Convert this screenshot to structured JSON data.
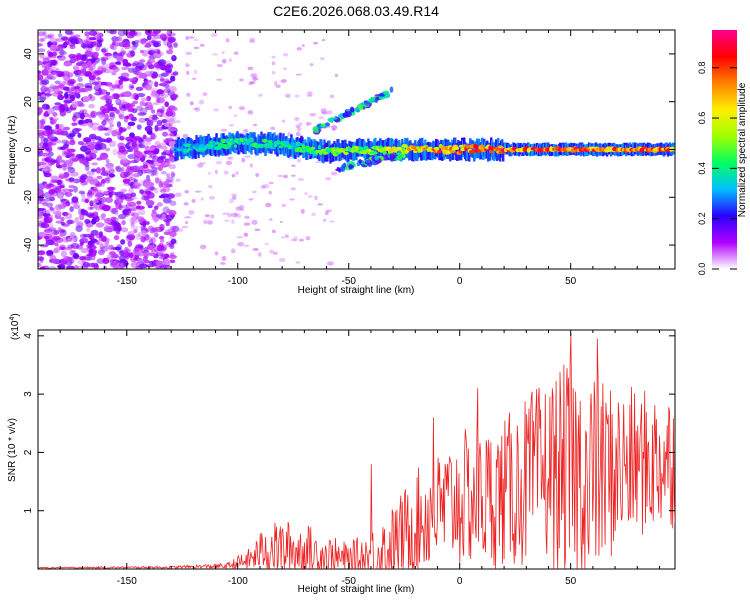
{
  "title": "C2E6.2026.068.03.49.R14",
  "chart_data": [
    {
      "type": "heatmap",
      "title": "C2E6.2026.068.03.49.R14",
      "xlabel": "Height of straight line (km)",
      "ylabel": "Frequency (Hz)",
      "xlim": [
        -190,
        97
      ],
      "ylim": [
        -50,
        50
      ],
      "xticks": [
        -150,
        -100,
        -50,
        0,
        50
      ],
      "yticks": [
        -40,
        -20,
        0,
        20,
        40
      ],
      "colorbar": {
        "label": "Normalized spectral amplitude",
        "range": [
          0,
          0.95
        ],
        "ticks": [
          "0.0",
          "0.2",
          "0.4",
          "0.6",
          "0.8"
        ],
        "colors": [
          "#ffffff",
          "#b000ff",
          "#2a00ff",
          "#00bfff",
          "#00ff60",
          "#a0ff00",
          "#ffee00",
          "#ff8000",
          "#ff0000",
          "#ff0090"
        ]
      },
      "features": [
        {
          "name": "noise-field",
          "x": [
            -190,
            -128
          ],
          "y": [
            -50,
            50
          ],
          "amplitude": 0.12
        },
        {
          "name": "main-band",
          "x": [
            -128,
            97
          ],
          "y_center": [
            0,
            3,
            2,
            -1,
            0,
            0,
            0,
            0
          ],
          "x_nodes": [
            -128,
            -100,
            -80,
            -60,
            -40,
            -20,
            20,
            97
          ],
          "amplitude": [
            0.35,
            0.45,
            0.4,
            0.5,
            0.55,
            0.7,
            0.85,
            0.8
          ]
        },
        {
          "name": "upper-branch",
          "x": [
            -65,
            -30
          ],
          "y": [
            8,
            25
          ],
          "amplitude": 0.4
        },
        {
          "name": "lower-branch",
          "x": [
            -55,
            -25
          ],
          "y": [
            -8,
            -2
          ],
          "amplitude": 0.4
        }
      ]
    },
    {
      "type": "line",
      "xlabel": "Height of straight line (km)",
      "ylabel": "SNR (10 * v/v)",
      "yscale_label": "(x10",
      "yscale_exp": "4",
      "xlim": [
        -190,
        97
      ],
      "ylim": [
        0,
        4.1
      ],
      "xticks": [
        -150,
        -100,
        -50,
        0,
        50
      ],
      "yticks": [
        1,
        2,
        3,
        4
      ],
      "color": "#ee2222",
      "envelope": {
        "x": [
          -190,
          -130,
          -105,
          -95,
          -88,
          -80,
          -70,
          -60,
          -50,
          -40,
          -30,
          -20,
          -10,
          0,
          10,
          20,
          30,
          40,
          50,
          60,
          70,
          80,
          97
        ],
        "base": [
          0.02,
          0.03,
          0.05,
          0.15,
          0.35,
          0.35,
          0.3,
          0.2,
          0.15,
          0.2,
          0.4,
          0.8,
          1.0,
          1.2,
          1.2,
          1.3,
          1.5,
          1.7,
          1.6,
          1.6,
          1.7,
          1.8,
          1.9
        ],
        "amp": [
          0.01,
          0.02,
          0.05,
          0.2,
          0.4,
          0.5,
          0.5,
          0.4,
          0.3,
          0.5,
          0.7,
          0.9,
          1.0,
          1.2,
          1.2,
          1.3,
          1.5,
          1.6,
          2.0,
          1.8,
          1.5,
          1.3,
          1.2
        ]
      },
      "peaks": [
        {
          "x": -40,
          "y": 1.8
        },
        {
          "x": -12,
          "y": 2.6
        },
        {
          "x": 8,
          "y": 3.1
        },
        {
          "x": 50,
          "y": 4.05
        },
        {
          "x": 62,
          "y": 3.95
        },
        {
          "x": 58,
          "y": 0.25
        }
      ]
    }
  ]
}
